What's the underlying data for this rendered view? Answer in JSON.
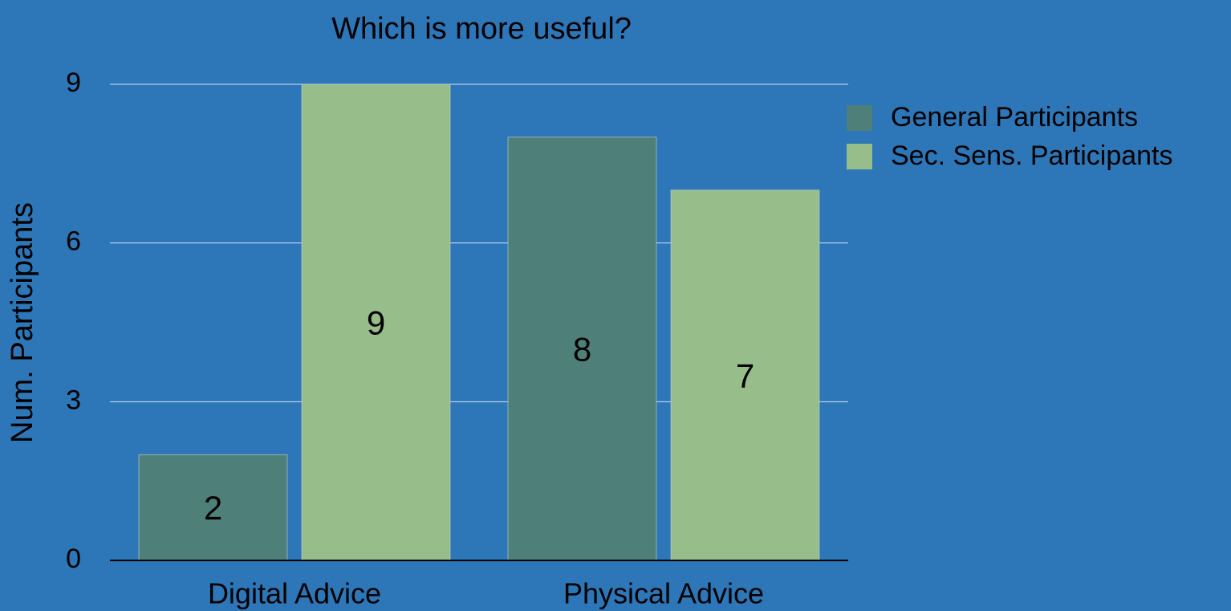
{
  "chart_data": {
    "type": "bar",
    "title": "Which is more useful?",
    "y_label": "Num. Participants",
    "categories": [
      "Digital Advice",
      "Physical Advice"
    ],
    "series": [
      {
        "name": "General Participants",
        "color": "#4e7f79",
        "values": [
          2,
          8
        ]
      },
      {
        "name": "Sec. Sens. Participants",
        "color": "#96bd8a",
        "values": [
          9,
          7
        ]
      }
    ],
    "ylim": [
      0,
      9
    ],
    "yticks": [
      0,
      3,
      6,
      9
    ],
    "grid": true,
    "legend": "upper right"
  }
}
